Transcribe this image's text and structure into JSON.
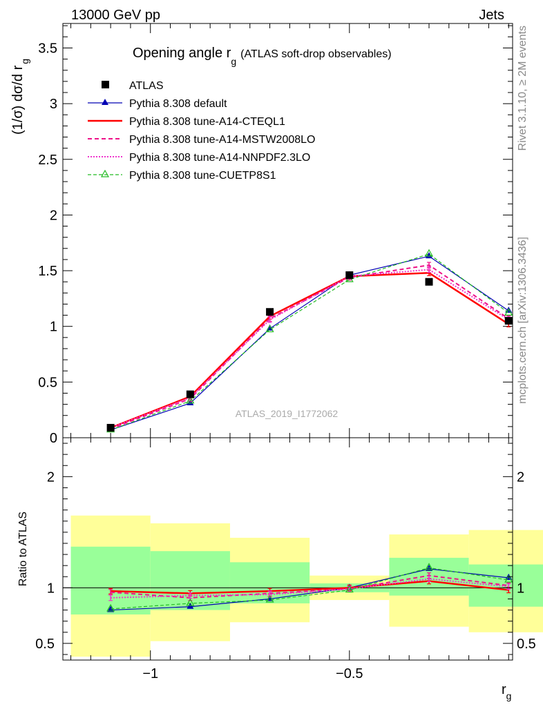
{
  "header": {
    "left": "13000 GeV pp",
    "right": "Jets"
  },
  "side_labels": {
    "top": "Rivet 3.1.10, ≥ 2M events",
    "bottom": "mcplots.cern.ch [arXiv:1306.3436]"
  },
  "watermark": "ATLAS_2019_I1772062",
  "colors": {
    "band_inner": "#99ff99",
    "band_outer": "#ffff99"
  },
  "chart_data": [
    {
      "type": "line",
      "title": "Opening angle r",
      "title_sub": "g",
      "title_suffix": "(ATLAS soft-drop observables)",
      "ylabel": "(1/σ) dσ/d r",
      "ylabel_sub": "g",
      "xlim": [
        -1.22,
        -0.09
      ],
      "ylim": [
        0,
        3.72
      ],
      "yticks": [
        "0",
        "0.5",
        "1",
        "1.5",
        "2",
        "2.5",
        "3",
        "3.5"
      ],
      "legend_position": "top-left",
      "x": [
        -1.1,
        -0.9,
        -0.7,
        -0.5,
        -0.3,
        -0.1
      ],
      "data": {
        "name": "ATLAS",
        "values": [
          0.09,
          0.39,
          1.13,
          1.46,
          1.4,
          1.05
        ]
      },
      "series": [
        {
          "name": "Pythia 8.308 default",
          "color": "#0000b4",
          "style": "solid",
          "marker": "triangle-filled",
          "values": [
            0.07,
            0.31,
            0.98,
            1.46,
            1.63,
            1.14
          ]
        },
        {
          "name": "Pythia 8.308 tune-A14-CTEQL1",
          "color": "#ff0000",
          "style": "solid-thick",
          "marker": "none",
          "values": [
            0.09,
            0.37,
            1.09,
            1.45,
            1.48,
            1.02
          ]
        },
        {
          "name": "Pythia 8.308 tune-A14-MSTW2008LO",
          "color": "#ee1188",
          "style": "dashed",
          "marker": "none",
          "values": [
            0.08,
            0.35,
            1.07,
            1.44,
            1.55,
            1.07
          ]
        },
        {
          "name": "Pythia 8.308 tune-A14-NNPDF2.3LO",
          "color": "#ee33cc",
          "style": "dotted",
          "marker": "none",
          "values": [
            0.09,
            0.36,
            1.06,
            1.45,
            1.51,
            1.06
          ]
        },
        {
          "name": "Pythia 8.308 tune-CUETP8S1",
          "color": "#22bb22",
          "style": "dashed",
          "marker": "triangle-open",
          "values": [
            0.07,
            0.33,
            0.97,
            1.42,
            1.65,
            1.12
          ]
        }
      ]
    },
    {
      "type": "line",
      "ylabel": "Ratio to ATLAS",
      "xlabel": "r",
      "xlabel_sub": "g",
      "xlim": [
        -1.22,
        -0.09
      ],
      "ylim": [
        0.35,
        2.35
      ],
      "yticks": [
        "0.5",
        "1",
        "2"
      ],
      "xticks": [
        "−1",
        "−0.5"
      ],
      "bins": [
        {
          "lo": -1.2,
          "hi": -1.0,
          "inner": [
            0.76,
            1.37
          ],
          "outer": [
            0.38,
            1.65
          ]
        },
        {
          "lo": -1.0,
          "hi": -0.8,
          "inner": [
            0.8,
            1.33
          ],
          "outer": [
            0.52,
            1.58
          ]
        },
        {
          "lo": -0.8,
          "hi": -0.6,
          "inner": [
            0.86,
            1.23
          ],
          "outer": [
            0.69,
            1.45
          ]
        },
        {
          "lo": -0.6,
          "hi": -0.4,
          "inner": [
            0.96,
            1.04
          ],
          "outer": [
            0.89,
            1.11
          ]
        },
        {
          "lo": -0.4,
          "hi": -0.2,
          "inner": [
            0.93,
            1.27
          ],
          "outer": [
            0.65,
            1.48
          ]
        },
        {
          "lo": -0.2,
          "hi": 0.0,
          "inner": [
            0.83,
            1.21
          ],
          "outer": [
            0.6,
            1.52
          ]
        }
      ],
      "x": [
        -1.1,
        -0.9,
        -0.7,
        -0.5,
        -0.3,
        -0.1
      ],
      "series": [
        {
          "name": "Pythia 8.308 default",
          "values": [
            0.8,
            0.83,
            0.9,
            1.0,
            1.17,
            1.09
          ]
        },
        {
          "name": "Pythia 8.308 tune-A14-CTEQL1",
          "values": [
            0.97,
            0.95,
            0.97,
            1.0,
            1.06,
            0.98
          ]
        },
        {
          "name": "Pythia 8.308 tune-A14-MSTW2008LO",
          "values": [
            0.96,
            0.91,
            0.95,
            0.99,
            1.11,
            1.02
          ]
        },
        {
          "name": "Pythia 8.308 tune-A14-NNPDF2.3LO",
          "values": [
            0.91,
            0.93,
            0.94,
            0.99,
            1.08,
            1.01
          ]
        },
        {
          "name": "Pythia 8.308 tune-CUETP8S1",
          "values": [
            0.81,
            0.86,
            0.89,
            0.98,
            1.18,
            1.07
          ]
        }
      ]
    }
  ]
}
